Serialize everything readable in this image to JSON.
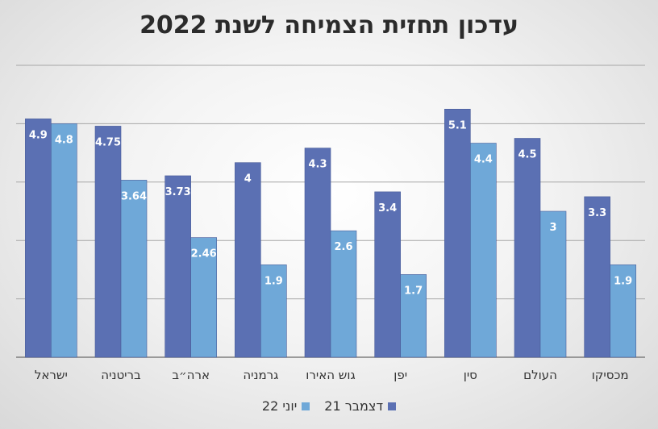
{
  "chart_data": {
    "type": "bar",
    "title": "עדכון תחזית הצמיחה לשנת 2022",
    "categories": [
      "ישראל",
      "בריטניה",
      "ארה״ב",
      "גרמניה",
      "גוש האירו",
      "יפן",
      "סין",
      "העולם",
      "מכסיקו"
    ],
    "series": [
      {
        "name": "דצמבר 21",
        "color": "#5b70b3",
        "values": [
          4.9,
          4.75,
          3.73,
          4,
          4.3,
          3.4,
          5.1,
          4.5,
          3.3
        ],
        "labels": [
          "4.9",
          "4.75",
          "3.73",
          "4",
          "4.3",
          "3.4",
          "5.1",
          "4.5",
          "3.3"
        ]
      },
      {
        "name": "יוני 22",
        "color": "#6fa8d8",
        "values": [
          4.8,
          3.64,
          2.46,
          1.9,
          2.6,
          1.7,
          4.4,
          3,
          1.9
        ],
        "labels": [
          "4.8",
          "3.64",
          "2.46",
          "1.9",
          "2.6",
          "1.7",
          "4.4",
          "3",
          "1.9"
        ]
      }
    ],
    "ylim": [
      0,
      6
    ],
    "grid": true,
    "legend_position": "bottom"
  }
}
